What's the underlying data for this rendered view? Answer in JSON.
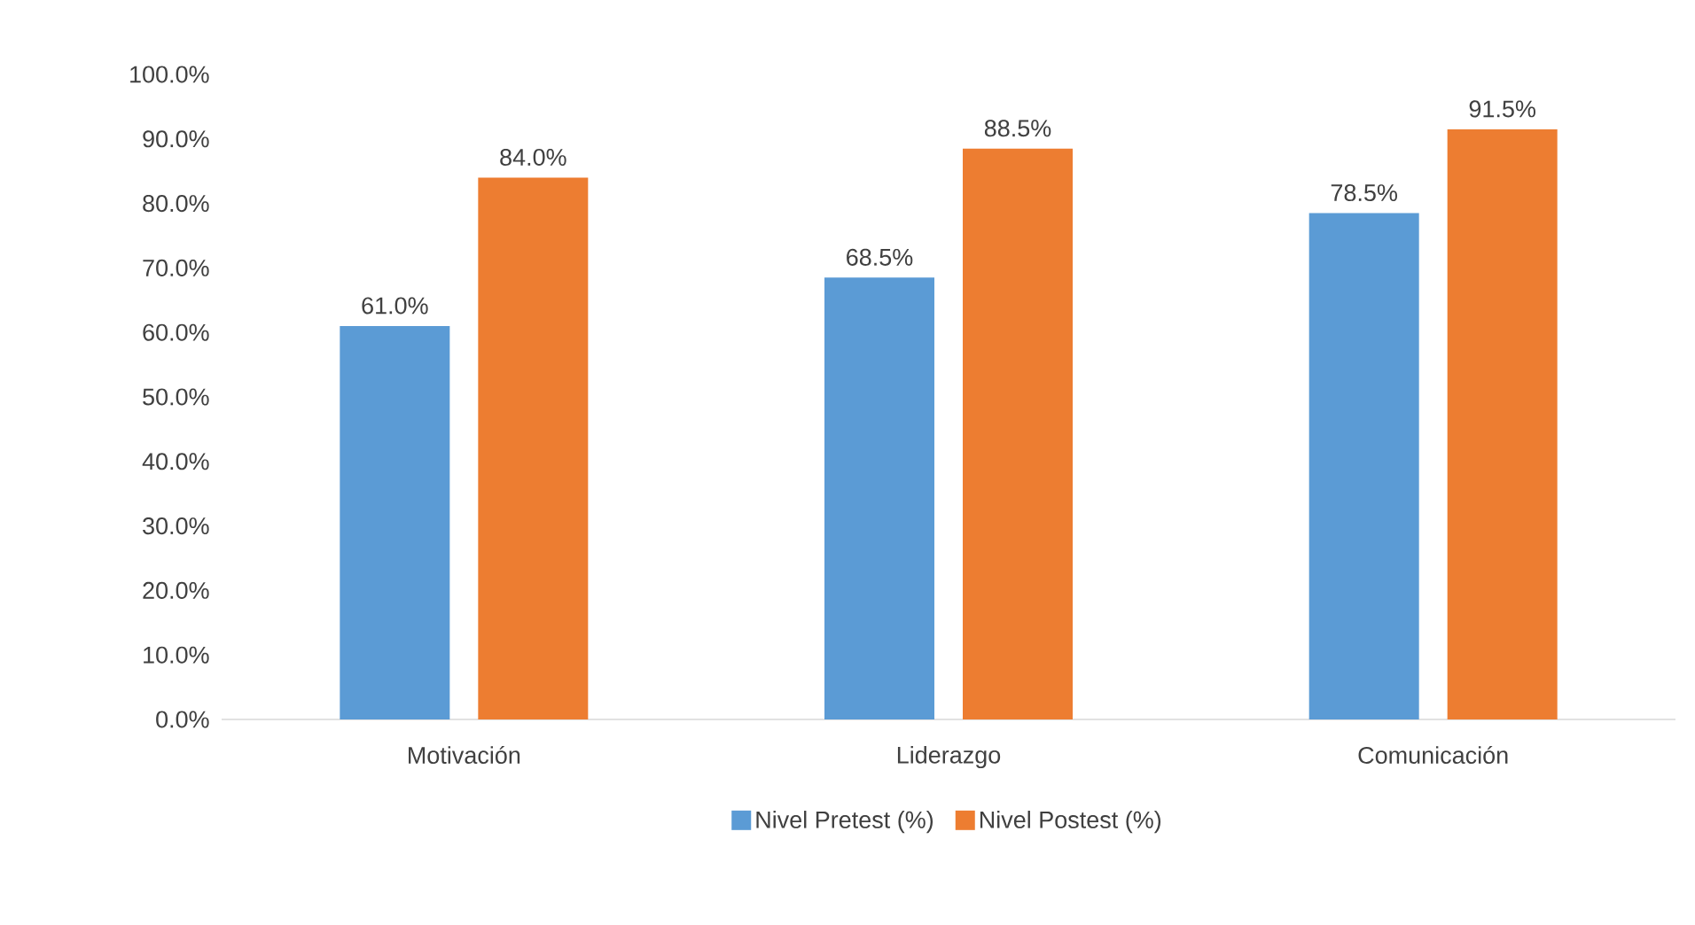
{
  "chart_data": {
    "type": "bar",
    "categories": [
      "Motivación",
      "Liderazgo",
      "Comunicación"
    ],
    "series": [
      {
        "name": "Nivel Pretest (%)",
        "color": "#5b9bd5",
        "values": [
          61.0,
          68.5,
          78.5
        ],
        "value_labels": [
          "61.0%",
          "68.5%",
          "78.5%"
        ]
      },
      {
        "name": "Nivel Postest (%)",
        "color": "#ed7d31",
        "values": [
          84.0,
          88.5,
          91.5
        ],
        "value_labels": [
          "84.0%",
          "88.5%",
          "91.5%"
        ]
      }
    ],
    "ylim": [
      0,
      100
    ],
    "yticks": [
      {
        "value": 0,
        "label": "0.0%"
      },
      {
        "value": 10,
        "label": "10.0%"
      },
      {
        "value": 20,
        "label": "20.0%"
      },
      {
        "value": 30,
        "label": "30.0%"
      },
      {
        "value": 40,
        "label": "40.0%"
      },
      {
        "value": 50,
        "label": "50.0%"
      },
      {
        "value": 60,
        "label": "60.0%"
      },
      {
        "value": 70,
        "label": "70.0%"
      },
      {
        "value": 80,
        "label": "80.0%"
      },
      {
        "value": 90,
        "label": "90.0%"
      },
      {
        "value": 100,
        "label": "100.0%"
      }
    ],
    "legend": "bottom"
  }
}
